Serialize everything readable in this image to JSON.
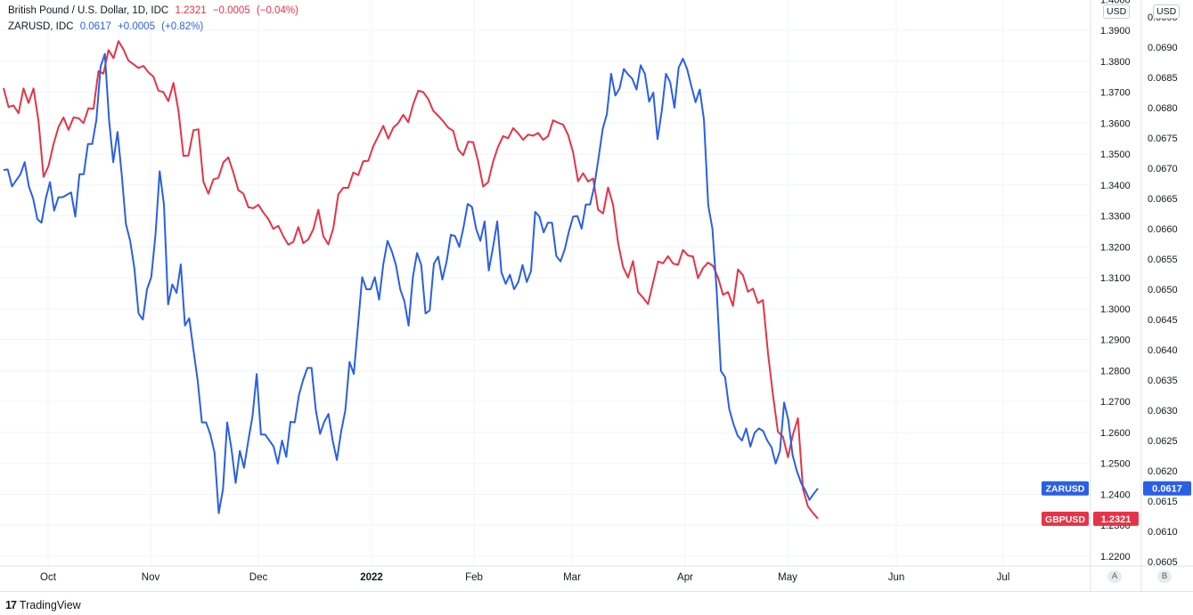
{
  "legend": {
    "gbp_title": "British Pound / U.S. Dollar, 1D, IDC",
    "gbp_value": "1.2321",
    "gbp_change": "−0.0005",
    "gbp_change_pct": "(−0.04%)",
    "zar_title": "ZARUSD, IDC",
    "zar_value": "0.0617",
    "zar_change": "+0.0005",
    "zar_change_pct": "(+0.82%)"
  },
  "left_unit": "USD",
  "right_unit": "USD",
  "scale_buttons": [
    "A",
    "B"
  ],
  "footer_brand": "TradingView",
  "colors": {
    "gbp": "#e53447",
    "zar": "#2a5fe6",
    "grid": "#f0f3fa"
  },
  "chart_data": {
    "type": "line",
    "x_ticks": [
      "Oct",
      "Nov",
      "Dec",
      "2022",
      "Feb",
      "Mar",
      "Apr",
      "May",
      "Jun",
      "Jul"
    ],
    "y_left": {
      "name": "USD",
      "min": 1.2155,
      "max": 1.4055,
      "ticks": [
        "1.4000",
        "1.3900",
        "1.3800",
        "1.3700",
        "1.3600",
        "1.3500",
        "1.3400",
        "1.3300",
        "1.3200",
        "1.3100",
        "1.3000",
        "1.2900",
        "1.2800",
        "1.2700",
        "1.2600",
        "1.2500",
        "1.2400",
        "1.2300",
        "1.2200"
      ]
    },
    "y_right": {
      "name": "USD",
      "min": 0.06043,
      "max": 0.06973,
      "ticks": [
        "0.0695",
        "0.0690",
        "0.0685",
        "0.0680",
        "0.0675",
        "0.0670",
        "0.0665",
        "0.0660",
        "0.0655",
        "0.0650",
        "0.0645",
        "0.0640",
        "0.0635",
        "0.0630",
        "0.0625",
        "0.0620",
        "0.0615",
        "0.0610",
        "0.0605"
      ]
    },
    "grid": true,
    "series": [
      {
        "name": "GBPUSD",
        "axis": "left",
        "last_label": "1.2321",
        "values": [
          1.3713,
          1.3652,
          1.3657,
          1.3632,
          1.3712,
          1.3665,
          1.3712,
          1.3605,
          1.3426,
          1.3462,
          1.3532,
          1.3588,
          1.3618,
          1.3578,
          1.3618,
          1.3616,
          1.36,
          1.3648,
          1.3646,
          1.3768,
          1.376,
          1.3836,
          1.381,
          1.3865,
          1.3838,
          1.3802,
          1.379,
          1.3778,
          1.3785,
          1.3764,
          1.375,
          1.3705,
          1.37,
          1.3671,
          1.373,
          1.364,
          1.3494,
          1.3495,
          1.3577,
          1.358,
          1.341,
          1.3372,
          1.3418,
          1.3423,
          1.3473,
          1.3489,
          1.344,
          1.3383,
          1.3372,
          1.3328,
          1.3325,
          1.3336,
          1.3311,
          1.329,
          1.3258,
          1.3268,
          1.3234,
          1.3207,
          1.3216,
          1.3264,
          1.3212,
          1.3224,
          1.3257,
          1.332,
          1.3234,
          1.3208,
          1.326,
          1.337,
          1.3391,
          1.3391,
          1.344,
          1.3432,
          1.3477,
          1.3478,
          1.3525,
          1.3558,
          1.3591,
          1.355,
          1.3585,
          1.36,
          1.3627,
          1.3603,
          1.3661,
          1.3705,
          1.37,
          1.3678,
          1.364,
          1.3624,
          1.3606,
          1.3585,
          1.3575,
          1.3514,
          1.3496,
          1.354,
          1.3538,
          1.3476,
          1.3395,
          1.3409,
          1.3476,
          1.3524,
          1.3558,
          1.3551,
          1.3584,
          1.3567,
          1.3546,
          1.3563,
          1.3559,
          1.3568,
          1.3546,
          1.3558,
          1.3609,
          1.3601,
          1.3595,
          1.3562,
          1.3506,
          1.3412,
          1.3438,
          1.3411,
          1.3421,
          1.332,
          1.3308,
          1.3392,
          1.3336,
          1.3213,
          1.3135,
          1.3101,
          1.3154,
          1.3054,
          1.3036,
          1.3015,
          1.3084,
          1.3153,
          1.3147,
          1.317,
          1.3146,
          1.3142,
          1.319,
          1.3172,
          1.3169,
          1.3099,
          1.3131,
          1.3149,
          1.3139,
          1.3101,
          1.3045,
          1.3054,
          1.3009,
          1.3127,
          1.3108,
          1.3055,
          1.3065,
          1.3018,
          1.3028,
          1.2858,
          1.2723,
          1.2602,
          1.2587,
          1.252,
          1.2594,
          1.2646,
          1.2418,
          1.2361,
          1.234,
          1.2321
        ]
      },
      {
        "name": "ZARUSD",
        "axis": "right",
        "last_label": "0.0617",
        "values": [
          0.06697,
          0.06698,
          0.0667,
          0.0668,
          0.0669,
          0.0671,
          0.0667,
          0.0665,
          0.06616,
          0.0661,
          0.0665,
          0.06677,
          0.0663,
          0.06652,
          0.06652,
          0.06656,
          0.0666,
          0.0662,
          0.0669,
          0.0669,
          0.0674,
          0.0674,
          0.0678,
          0.06868,
          0.06889,
          0.0678,
          0.0671,
          0.0676,
          0.0669,
          0.06608,
          0.0658,
          0.06535,
          0.0646,
          0.0645,
          0.065,
          0.0652,
          0.0659,
          0.06695,
          0.0664,
          0.06475,
          0.06508,
          0.06494,
          0.06541,
          0.0644,
          0.06452,
          0.064,
          0.0635,
          0.0628,
          0.0628,
          0.0626,
          0.0623,
          0.0613,
          0.0617,
          0.0628,
          0.06237,
          0.0618,
          0.06233,
          0.06205,
          0.0625,
          0.0629,
          0.0636,
          0.0626,
          0.0626,
          0.0625,
          0.0624,
          0.06212,
          0.0625,
          0.06223,
          0.06281,
          0.0628,
          0.06325,
          0.0635,
          0.0637,
          0.0637,
          0.06301,
          0.06261,
          0.06281,
          0.06294,
          0.0625,
          0.06218,
          0.06265,
          0.063,
          0.0638,
          0.0636,
          0.0644,
          0.0652,
          0.065,
          0.065,
          0.0652,
          0.06483,
          0.06541,
          0.0658,
          0.06563,
          0.0654,
          0.065,
          0.0648,
          0.0644,
          0.0652,
          0.0656,
          0.0654,
          0.0646,
          0.06465,
          0.06542,
          0.06554,
          0.06516,
          0.06546,
          0.0659,
          0.06588,
          0.0657,
          0.06602,
          0.06641,
          0.06636,
          0.066,
          0.0658,
          0.06612,
          0.06531,
          0.06569,
          0.06612,
          0.06528,
          0.06509,
          0.06524,
          0.065,
          0.06512,
          0.0654,
          0.06512,
          0.0653,
          0.06628,
          0.0662,
          0.06594,
          0.0661,
          0.0661,
          0.06555,
          0.06546,
          0.06566,
          0.06596,
          0.0662,
          0.06621,
          0.066,
          0.0664,
          0.0664,
          0.0667,
          0.06716,
          0.06765,
          0.0679,
          0.06856,
          0.0682,
          0.06832,
          0.06864,
          0.06855,
          0.06848,
          0.0683,
          0.0687,
          0.06856,
          0.0681,
          0.06825,
          0.06748,
          0.06795,
          0.06856,
          0.06842,
          0.068,
          0.06866,
          0.06881,
          0.06864,
          0.06836,
          0.06809,
          0.0683,
          0.0678,
          0.06639,
          0.066,
          0.065,
          0.06365,
          0.06355,
          0.06302,
          0.06277,
          0.06258,
          0.0625,
          0.0627,
          0.0624,
          0.06263,
          0.0627,
          0.06266,
          0.0625,
          0.06239,
          0.06212,
          0.06233,
          0.06313,
          0.06284,
          0.06226,
          0.062,
          0.0618,
          0.06168,
          0.06152,
          0.06162,
          0.06171
        ]
      }
    ]
  }
}
